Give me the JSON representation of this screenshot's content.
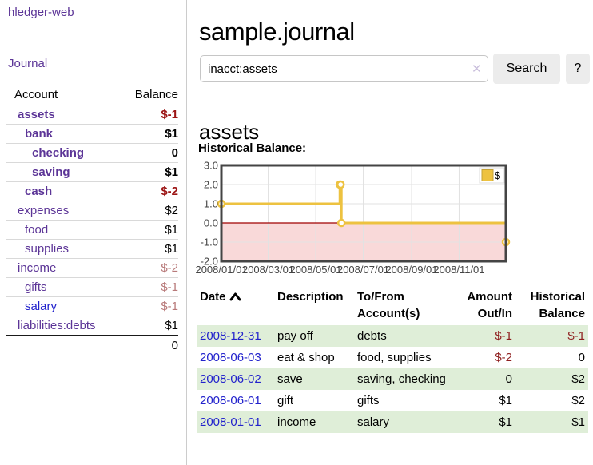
{
  "app": {
    "title": "hledger-web"
  },
  "colors": {
    "link_purple": "#5c3597",
    "link_blue": "#2222cc",
    "negative_strong": "#9c1414",
    "negative_weak": "#b87a7a",
    "table_negative": "#8f1f1f",
    "row_stripe_green": "#dfeed8",
    "chart_series_yellow": "#edc240",
    "chart_negative_region": "#f9d9d9",
    "chart_zero_line": "#a00000"
  },
  "sidebar": {
    "journal_link": "Journal",
    "table": {
      "headers": {
        "account": "Account",
        "balance": "Balance"
      },
      "accounts": [
        {
          "name": "assets",
          "balance": "$-1",
          "depth": 1,
          "bold": true,
          "balance_style": "neg-strong"
        },
        {
          "name": "bank",
          "balance": "$1",
          "depth": 2,
          "bold": true,
          "balance_style": "normal"
        },
        {
          "name": "checking",
          "balance": "0",
          "depth": 3,
          "bold": true,
          "balance_style": "normal"
        },
        {
          "name": "saving",
          "balance": "$1",
          "depth": 3,
          "bold": true,
          "balance_style": "normal"
        },
        {
          "name": "cash",
          "balance": "$-2",
          "depth": 2,
          "bold": true,
          "balance_style": "neg-strong"
        },
        {
          "name": "expenses",
          "balance": "$2",
          "depth": 1,
          "bold": false,
          "balance_style": "normal"
        },
        {
          "name": "food",
          "balance": "$1",
          "depth": 2,
          "bold": false,
          "balance_style": "normal"
        },
        {
          "name": "supplies",
          "balance": "$1",
          "depth": 2,
          "bold": false,
          "balance_style": "normal"
        },
        {
          "name": "income",
          "balance": "$-2",
          "depth": 1,
          "bold": false,
          "balance_style": "neg-weak"
        },
        {
          "name": "gifts",
          "balance": "$-1",
          "depth": 2,
          "bold": false,
          "balance_style": "neg-weak"
        },
        {
          "name": "salary",
          "balance": "$-1",
          "depth": 2,
          "bold": false,
          "balance_style": "neg-weak",
          "link_style": "unvisited"
        },
        {
          "name": "liabilities:debts",
          "balance": "$1",
          "depth": 1,
          "bold": false,
          "balance_style": "normal"
        }
      ],
      "total": "0"
    }
  },
  "main": {
    "title": "sample.journal",
    "search": {
      "value": "inacct:assets",
      "clear_icon": "✕",
      "button": "Search",
      "help_button": "?"
    },
    "account_heading": "assets",
    "chart_label": "Historical Balance:"
  },
  "chart_data": {
    "type": "line",
    "step": true,
    "title": "Historical Balance",
    "series": [
      {
        "name": "$",
        "color": "#edc240",
        "points": [
          [
            "2008-01-01",
            1
          ],
          [
            "2008-06-01",
            2
          ],
          [
            "2008-06-02",
            2
          ],
          [
            "2008-06-03",
            0
          ],
          [
            "2008-12-31",
            -1
          ]
        ]
      }
    ],
    "xlim": [
      "2008-01-01",
      "2008-12-31"
    ],
    "ylim": [
      -2,
      3
    ],
    "y_ticks": [
      3.0,
      2.0,
      1.0,
      0.0,
      -1.0,
      -2.0
    ],
    "x_ticks": [
      "2008/01/01",
      "2008/03/01",
      "2008/05/01",
      "2008/07/01",
      "2008/09/01",
      "2008/11/01"
    ],
    "grid": true,
    "legend": {
      "label": "$",
      "position": "top-right"
    },
    "negative_region_color": "#f9d9d9",
    "zero_line_color": "#a00000",
    "axis_text_color": "#444444",
    "border_color": "#444444"
  },
  "register_table": {
    "headers": {
      "date": "Date",
      "description": "Description",
      "tofrom1": "To/From",
      "tofrom2": "Account(s)",
      "amount1": "Amount",
      "amount2": "Out/In",
      "hist1": "Historical",
      "hist2": "Balance"
    },
    "sort_icon": "chevron-up-icon",
    "rows": [
      {
        "date": "2008-12-31",
        "description": "pay off",
        "accounts": "debts",
        "amount": "$-1",
        "amount_neg": true,
        "balance": "$-1",
        "balance_neg": true,
        "shaded": true
      },
      {
        "date": "2008-06-03",
        "description": "eat & shop",
        "accounts": "food, supplies",
        "amount": "$-2",
        "amount_neg": true,
        "balance": "0",
        "balance_neg": false,
        "shaded": false
      },
      {
        "date": "2008-06-02",
        "description": "save",
        "accounts": "saving, checking",
        "amount": "0",
        "amount_neg": false,
        "balance": "$2",
        "balance_neg": false,
        "shaded": true
      },
      {
        "date": "2008-06-01",
        "description": "gift",
        "accounts": "gifts",
        "amount": "$1",
        "amount_neg": false,
        "balance": "$2",
        "balance_neg": false,
        "shaded": false
      },
      {
        "date": "2008-01-01",
        "description": "income",
        "accounts": "salary",
        "amount": "$1",
        "amount_neg": false,
        "balance": "$1",
        "balance_neg": false,
        "shaded": true
      }
    ]
  }
}
